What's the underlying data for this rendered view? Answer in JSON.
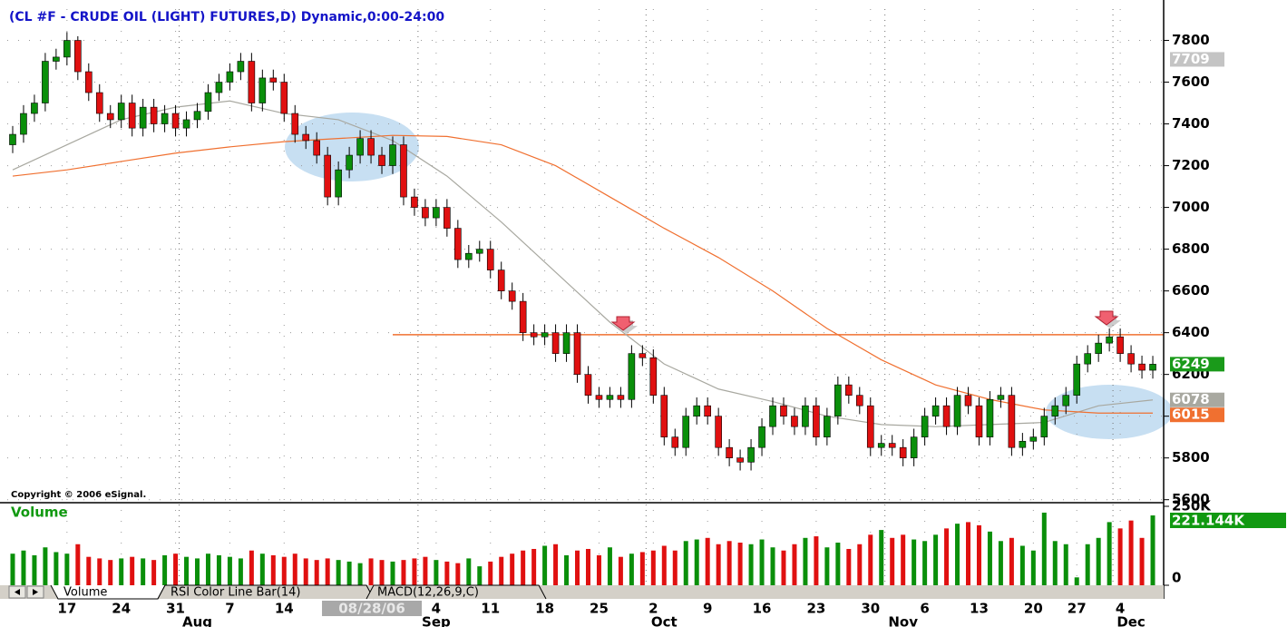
{
  "window": {
    "title": "(CL #F - CRUDE OIL (LIGHT) FUTURES,D) Dynamic,0:00-24:00",
    "copyright": "Copyright © 2006 eSignal.",
    "tabs": [
      "Volume",
      "RSI Color Line Bar(14)",
      "MACD(12,26,9,C)"
    ]
  },
  "chart_data": [
    {
      "type": "candlestick",
      "up_color": "#0a8f0a",
      "down_color": "#e01010",
      "grid": true,
      "x": [
        0,
        1,
        2,
        3,
        4,
        5,
        6,
        7,
        8,
        9,
        10,
        11,
        12,
        13,
        14,
        15,
        16,
        17,
        18,
        19,
        20,
        21,
        22,
        23,
        24,
        25,
        26,
        27,
        28,
        29,
        30,
        31,
        32,
        33,
        34,
        35,
        36,
        37,
        38,
        39,
        40,
        41,
        42,
        43,
        44,
        45,
        46,
        47,
        48,
        49,
        50,
        51,
        52,
        53,
        54,
        55,
        56,
        57,
        58,
        59,
        60,
        61,
        62,
        63,
        64,
        65,
        66,
        67,
        68,
        69,
        70,
        71,
        72,
        73,
        74,
        75,
        76,
        77,
        78,
        79,
        80,
        81,
        82,
        83,
        84,
        85,
        86,
        87,
        88,
        89,
        90,
        91,
        92,
        93,
        94,
        95,
        96,
        97,
        98,
        99,
        100,
        101,
        102,
        103,
        104,
        105
      ],
      "open": [
        7300,
        7350,
        7450,
        7500,
        7700,
        7720,
        7800,
        7650,
        7550,
        7450,
        7420,
        7500,
        7380,
        7480,
        7400,
        7450,
        7380,
        7420,
        7460,
        7550,
        7600,
        7650,
        7700,
        7500,
        7620,
        7600,
        7450,
        7350,
        7320,
        7250,
        7050,
        7180,
        7250,
        7330,
        7250,
        7200,
        7300,
        7050,
        7000,
        6950,
        7000,
        6900,
        6750,
        6780,
        6800,
        6700,
        6600,
        6550,
        6400,
        6380,
        6400,
        6300,
        6400,
        6200,
        6100,
        6080,
        6100,
        6080,
        6300,
        6280,
        6100,
        5900,
        5850,
        6000,
        6050,
        6000,
        5850,
        5800,
        5780,
        5850,
        5950,
        6050,
        6000,
        5950,
        6050,
        5900,
        6000,
        6150,
        6100,
        6050,
        5850,
        5870,
        5850,
        5800,
        5900,
        6000,
        6050,
        5950,
        6100,
        6050,
        5900,
        6080,
        6100,
        5850,
        5880,
        5900,
        6000,
        6050,
        6100,
        6250,
        6300,
        6350,
        6380,
        6300,
        6250,
        6220
      ],
      "high": [
        7390,
        7490,
        7540,
        7740,
        7760,
        7840,
        7820,
        7690,
        7590,
        7490,
        7540,
        7540,
        7520,
        7520,
        7490,
        7490,
        7460,
        7500,
        7590,
        7640,
        7690,
        7740,
        7740,
        7660,
        7660,
        7640,
        7490,
        7390,
        7360,
        7290,
        7220,
        7290,
        7370,
        7370,
        7290,
        7340,
        7340,
        7090,
        7040,
        7040,
        7040,
        6940,
        6820,
        6840,
        6840,
        6740,
        6640,
        6590,
        6440,
        6440,
        6440,
        6440,
        6440,
        6240,
        6140,
        6140,
        6140,
        6340,
        6340,
        6320,
        6140,
        5940,
        6040,
        6090,
        6090,
        6040,
        5890,
        5840,
        5890,
        5990,
        6090,
        6090,
        6040,
        6090,
        6090,
        6040,
        6190,
        6190,
        6140,
        6090,
        5910,
        5910,
        5890,
        5940,
        6040,
        6090,
        6090,
        6140,
        6140,
        6090,
        6120,
        6140,
        6140,
        5920,
        5940,
        6040,
        6090,
        6140,
        6290,
        6340,
        6390,
        6420,
        6420,
        6340,
        6290,
        6289
      ],
      "low": [
        7260,
        7310,
        7410,
        7460,
        7660,
        7680,
        7610,
        7510,
        7410,
        7380,
        7380,
        7340,
        7340,
        7360,
        7360,
        7340,
        7340,
        7380,
        7420,
        7510,
        7560,
        7610,
        7460,
        7460,
        7560,
        7410,
        7310,
        7280,
        7210,
        7010,
        7010,
        7140,
        7210,
        7210,
        7160,
        7160,
        7010,
        6960,
        6910,
        6910,
        6860,
        6710,
        6710,
        6740,
        6660,
        6560,
        6510,
        6360,
        6340,
        6340,
        6260,
        6260,
        6160,
        6060,
        6040,
        6040,
        6040,
        6040,
        6240,
        6060,
        5860,
        5810,
        5810,
        5960,
        5960,
        5810,
        5760,
        5740,
        5740,
        5810,
        5910,
        5960,
        5910,
        5910,
        5860,
        5860,
        5960,
        6060,
        6010,
        5810,
        5810,
        5810,
        5760,
        5760,
        5860,
        5960,
        5910,
        5910,
        6010,
        5860,
        5860,
        6040,
        5810,
        5810,
        5840,
        5860,
        5960,
        6010,
        6060,
        6210,
        6260,
        6310,
        6260,
        6210,
        6180,
        6180
      ],
      "close": [
        7350,
        7450,
        7500,
        7700,
        7720,
        7800,
        7650,
        7550,
        7450,
        7420,
        7500,
        7380,
        7480,
        7400,
        7450,
        7380,
        7420,
        7460,
        7550,
        7600,
        7650,
        7700,
        7500,
        7620,
        7600,
        7450,
        7350,
        7320,
        7250,
        7050,
        7180,
        7250,
        7330,
        7250,
        7200,
        7300,
        7050,
        7000,
        6950,
        7000,
        6900,
        6750,
        6780,
        6800,
        6700,
        6600,
        6550,
        6400,
        6380,
        6400,
        6300,
        6400,
        6200,
        6100,
        6080,
        6100,
        6080,
        6300,
        6280,
        6100,
        5900,
        5850,
        6000,
        6050,
        6000,
        5850,
        5800,
        5780,
        5850,
        5950,
        6050,
        6000,
        5950,
        6050,
        5900,
        6000,
        6150,
        6100,
        6050,
        5850,
        5870,
        5850,
        5800,
        5900,
        6000,
        6050,
        5950,
        6100,
        6050,
        5900,
        6080,
        6100,
        5850,
        5880,
        5900,
        6000,
        6050,
        6100,
        6250,
        6300,
        6350,
        6380,
        6300,
        6250,
        6220,
        6249
      ],
      "last_color": "#1a9a1a",
      "series": [
        {
          "color": "#a8a8a0",
          "x": [
            0,
            5,
            10,
            15,
            20,
            25,
            30,
            35,
            40,
            45,
            50,
            55,
            60,
            65,
            70,
            75,
            80,
            85,
            90,
            95,
            100,
            105
          ],
          "values": [
            7180,
            7300,
            7420,
            7480,
            7510,
            7450,
            7420,
            7320,
            7150,
            6930,
            6690,
            6450,
            6250,
            6130,
            6070,
            6000,
            5960,
            5950,
            5960,
            5970,
            6050,
            6078
          ]
        },
        {
          "color": "#f07030",
          "x": [
            0,
            5,
            10,
            15,
            20,
            25,
            30,
            35,
            40,
            45,
            50,
            55,
            60,
            65,
            70,
            75,
            80,
            85,
            90,
            95,
            100,
            105
          ],
          "values": [
            7150,
            7180,
            7220,
            7260,
            7290,
            7315,
            7330,
            7345,
            7340,
            7300,
            7200,
            7050,
            6900,
            6760,
            6600,
            6420,
            6270,
            6150,
            6080,
            6030,
            6015,
            6015
          ]
        }
      ],
      "resistance": {
        "value": 6390,
        "from": 35,
        "color": "#f07030"
      },
      "markers": [
        {
          "value": 7709,
          "color": "#c4c4c4"
        }
      ],
      "xlim": [
        -0.5,
        106
      ],
      "xticks": [
        {
          "value": 5,
          "label": "17"
        },
        {
          "value": 10,
          "label": "24"
        },
        {
          "value": 15,
          "label": "31"
        },
        {
          "value": 20,
          "label": "7"
        },
        {
          "value": 25,
          "label": "14"
        },
        {
          "value": 39,
          "label": "4"
        },
        {
          "value": 44,
          "label": "11"
        },
        {
          "value": 49,
          "label": "18"
        },
        {
          "value": 54,
          "label": "25"
        },
        {
          "value": 59,
          "label": "2"
        },
        {
          "value": 64,
          "label": "9"
        },
        {
          "value": 69,
          "label": "16"
        },
        {
          "value": 74,
          "label": "23"
        },
        {
          "value": 79,
          "label": "30"
        },
        {
          "value": 84,
          "label": "6"
        },
        {
          "value": 89,
          "label": "13"
        },
        {
          "value": 94,
          "label": "20"
        },
        {
          "value": 98,
          "label": "27"
        },
        {
          "value": 102,
          "label": "4"
        }
      ],
      "month_ticks": [
        {
          "value": 17,
          "label": "Aug"
        },
        {
          "value": 39,
          "label": "Sep"
        },
        {
          "value": 60,
          "label": "Oct"
        },
        {
          "value": 82,
          "label": "Nov"
        },
        {
          "value": 103,
          "label": "Dec"
        }
      ],
      "cursor": {
        "value": 34,
        "label": "08/28/06"
      },
      "ylim": [
        5590,
        7950
      ],
      "yticks": [
        5600,
        5800,
        6000,
        6200,
        6400,
        6600,
        6800,
        7000,
        7200,
        7400,
        7600,
        7800
      ]
    },
    {
      "type": "bar",
      "title": "Volume",
      "title_color": "#119911",
      "values": [
        100000,
        110000,
        95000,
        120000,
        105000,
        100000,
        130000,
        90000,
        85000,
        80000,
        85000,
        90000,
        85000,
        80000,
        95000,
        100000,
        90000,
        85000,
        100000,
        95000,
        90000,
        85000,
        110000,
        100000,
        95000,
        90000,
        100000,
        85000,
        80000,
        85000,
        80000,
        75000,
        70000,
        85000,
        80000,
        75000,
        80000,
        85000,
        90000,
        80000,
        75000,
        70000,
        85000,
        60000,
        75000,
        90000,
        100000,
        110000,
        115000,
        125000,
        130000,
        95000,
        110000,
        115000,
        95000,
        120000,
        90000,
        100000,
        105000,
        110000,
        125000,
        110000,
        140000,
        145000,
        150000,
        130000,
        140000,
        135000,
        130000,
        145000,
        120000,
        110000,
        130000,
        150000,
        155000,
        120000,
        135000,
        115000,
        130000,
        160000,
        175000,
        150000,
        160000,
        145000,
        140000,
        160000,
        180000,
        195000,
        200000,
        190000,
        170000,
        140000,
        150000,
        125000,
        110000,
        230000,
        140000,
        130000,
        25000,
        130000,
        150000,
        200000,
        180000,
        205000,
        150000,
        221144
      ],
      "last_label": "221.144K",
      "last_color": "#119911",
      "ylim": [
        0,
        250000
      ],
      "yticks": [
        0,
        {
          "value": 250000,
          "label": "250K"
        }
      ]
    }
  ]
}
